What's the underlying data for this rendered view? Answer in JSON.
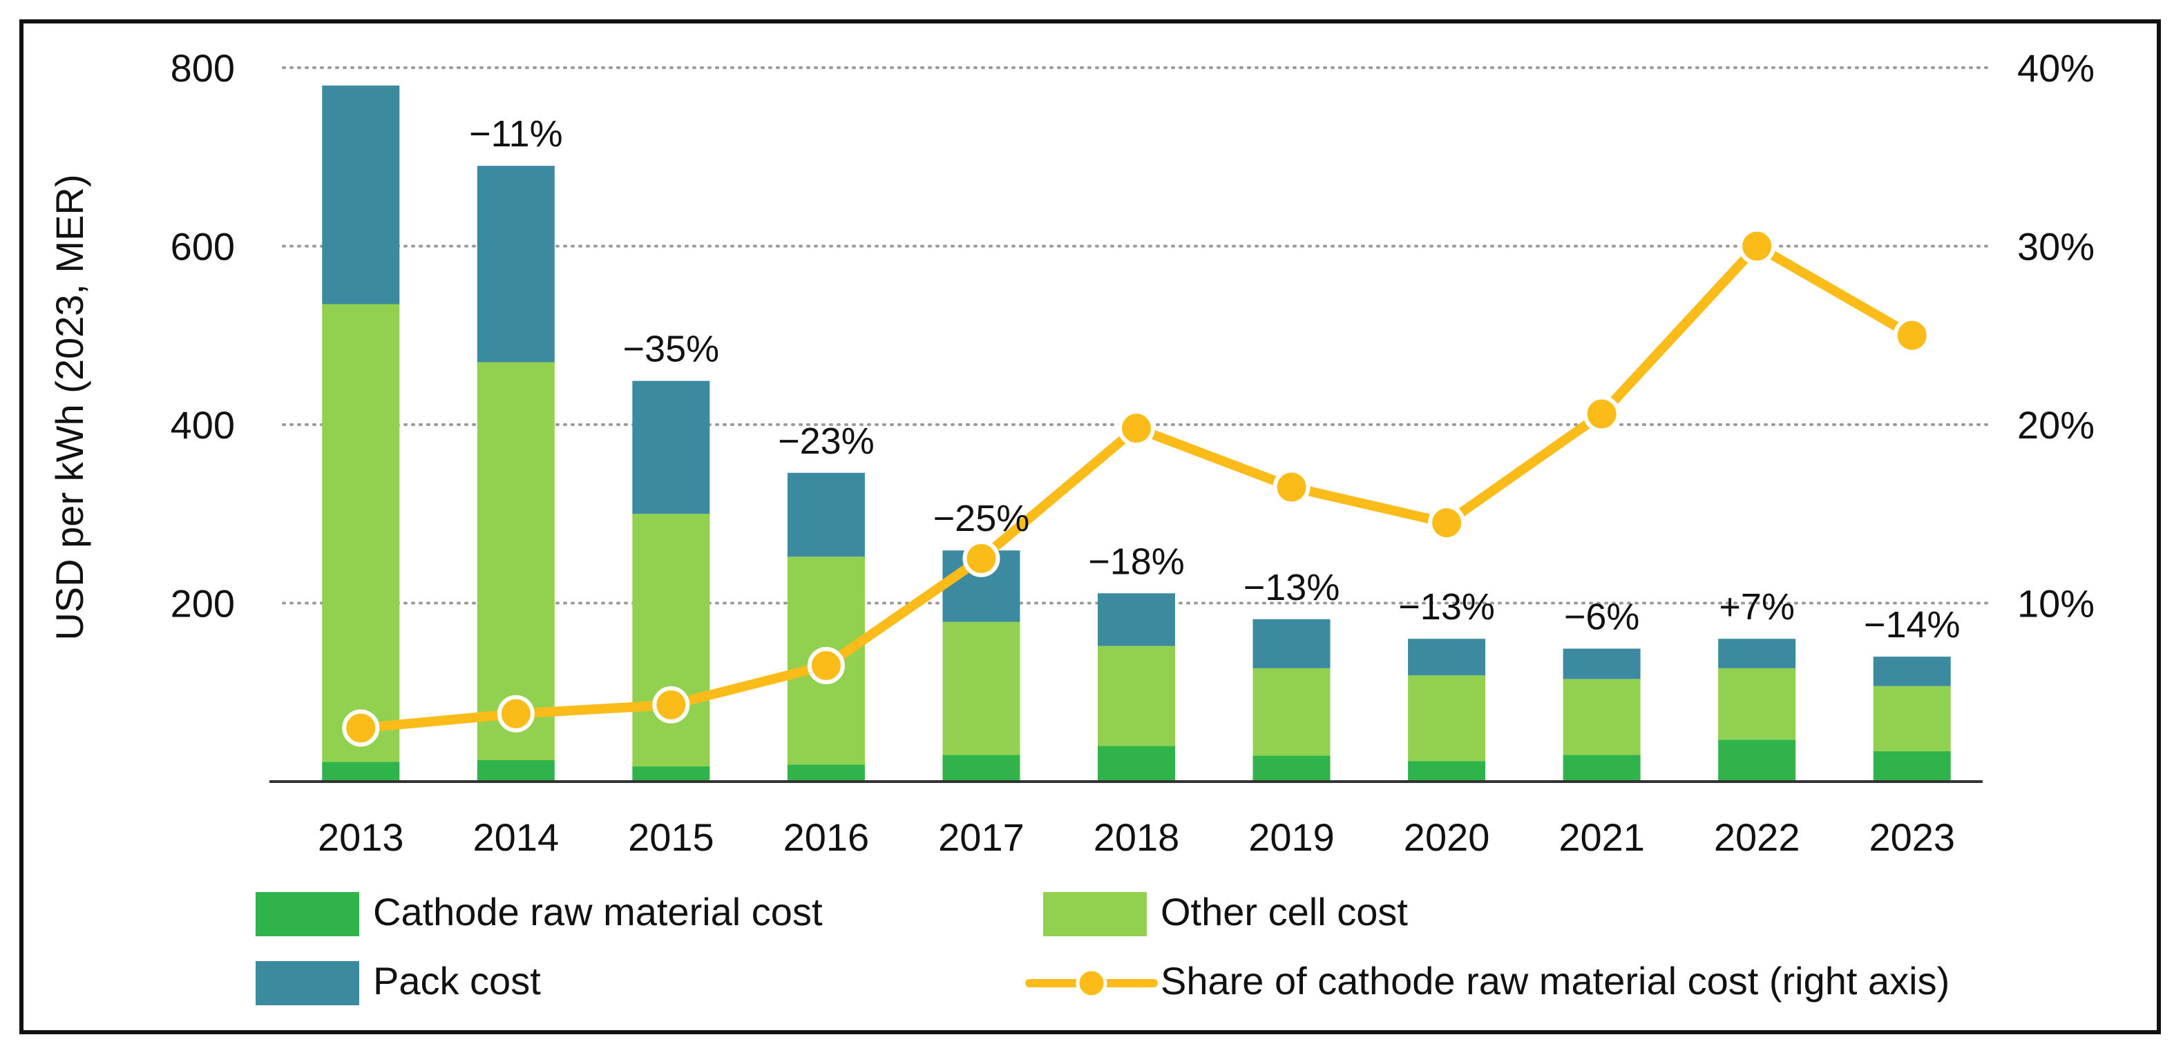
{
  "chart_data": {
    "type": "bar",
    "stacked": true,
    "title": "",
    "xlabel": "",
    "ylabel": "USD per kWh (2023, MER)",
    "ylim": [
      0,
      800
    ],
    "y_ticks": [
      "200",
      "400",
      "600",
      "800"
    ],
    "y2lim": [
      0,
      40
    ],
    "y2_ticks": [
      "10%",
      "20%",
      "30%",
      "40%"
    ],
    "grid": "horizontal dotted",
    "categories": [
      "2013",
      "2014",
      "2015",
      "2016",
      "2017",
      "2018",
      "2019",
      "2020",
      "2021",
      "2022",
      "2023"
    ],
    "series": [
      {
        "name": "Cathode raw material cost",
        "color": "#2fb34a",
        "values": [
          22,
          24,
          17,
          19,
          30,
          40,
          29,
          23,
          30,
          47,
          34
        ]
      },
      {
        "name": "Other cell cost",
        "color": "#92d050",
        "values": [
          513,
          446,
          283,
          233,
          149,
          112,
          98,
          96,
          85,
          80,
          73
        ]
      },
      {
        "name": "Pack cost",
        "color": "#3c8aa0",
        "values": [
          245,
          220,
          149,
          94,
          80,
          59,
          55,
          41,
          34,
          33,
          33
        ]
      }
    ],
    "line_series": {
      "name": "Share of cathode raw material cost (right axis)",
      "axis": "right",
      "color": "#fbbc1a",
      "values": [
        3.0,
        3.8,
        4.3,
        6.5,
        12.5,
        19.8,
        16.5,
        14.5,
        20.6,
        30.0,
        25.0
      ]
    },
    "annotations": [
      "",
      "−11%",
      "−35%",
      "−23%",
      "−25%",
      "−18%",
      "−13%",
      "−13%",
      "−6%",
      "+7%",
      "−14%"
    ],
    "annotation_colors": [
      "#111111",
      "#111111",
      "#111111",
      "#111111",
      "#111111",
      "#111111",
      "#111111",
      "#111111",
      "#111111",
      "#ff0000",
      "#111111"
    ],
    "legend": {
      "placement": "bottom",
      "items": [
        {
          "label": "Cathode raw material cost",
          "kind": "box",
          "color": "#2fb34a"
        },
        {
          "label": "Other cell cost",
          "kind": "box",
          "color": "#92d050"
        },
        {
          "label": "Pack cost",
          "kind": "box",
          "color": "#3c8aa0"
        },
        {
          "label": "Share of cathode raw material cost (right axis)",
          "kind": "line",
          "color": "#fbbc1a"
        }
      ]
    }
  }
}
